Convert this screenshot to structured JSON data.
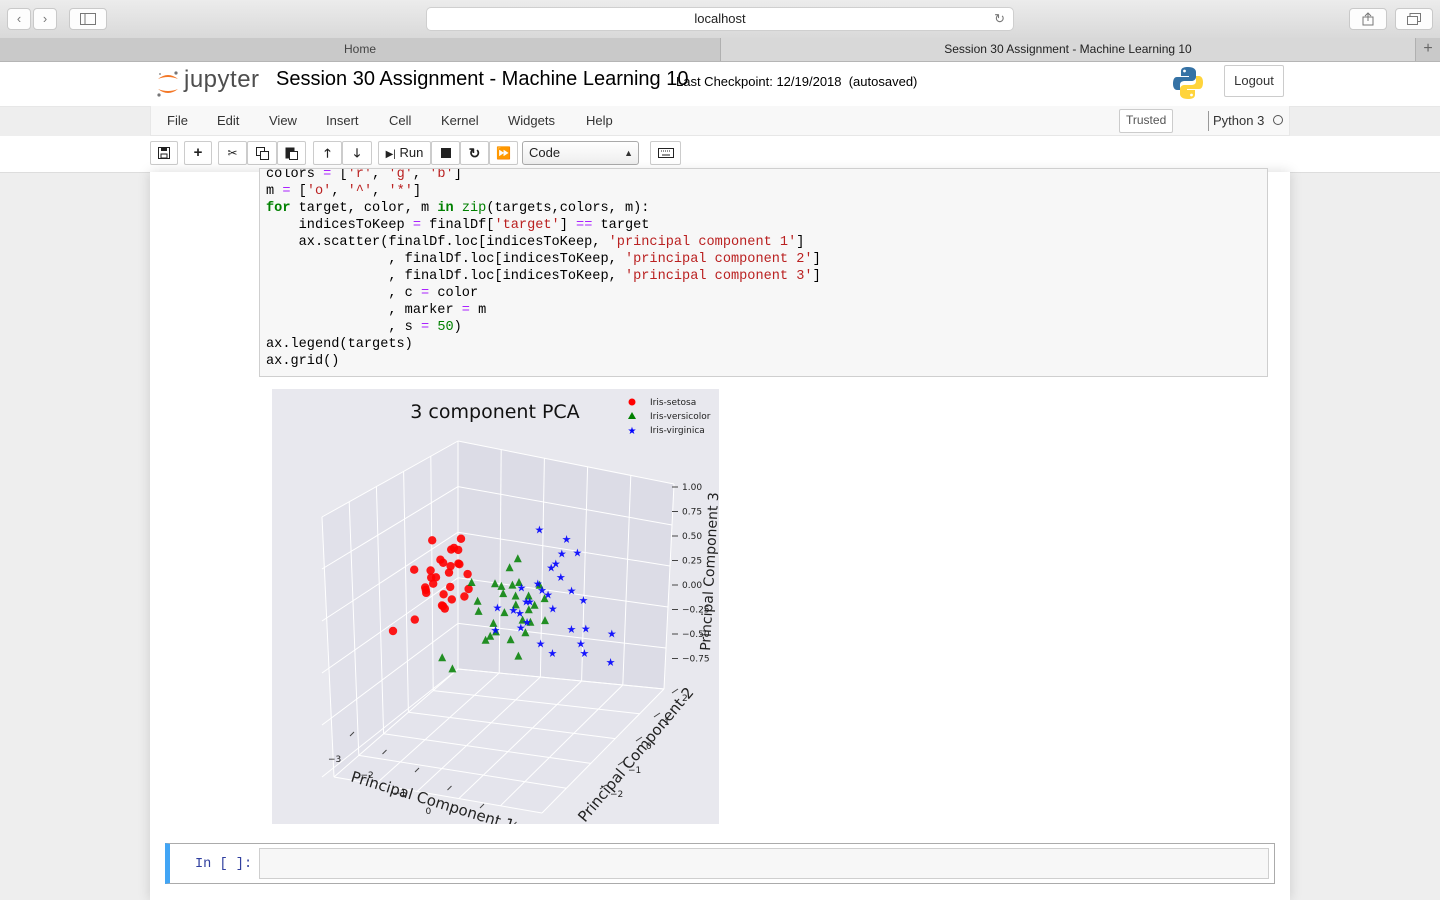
{
  "browser": {
    "url": "localhost",
    "tabs": [
      {
        "label": "Home"
      },
      {
        "label": "Session 30 Assignment - Machine Learning 10"
      }
    ]
  },
  "header": {
    "logo_text": "jupyter",
    "notebook_title": "Session 30 Assignment - Machine Learning 10",
    "checkpoint": "Last Checkpoint: 12/19/2018  (autosaved)",
    "logout_label": "Logout"
  },
  "menubar": {
    "items": [
      "File",
      "Edit",
      "View",
      "Insert",
      "Cell",
      "Kernel",
      "Widgets",
      "Help"
    ],
    "trusted": "Trusted",
    "kernel": "Python 3"
  },
  "toolbar": {
    "run_label": "Run",
    "cell_type": "Code"
  },
  "code_lines": [
    "colors = ['r', 'g', 'b']",
    "m = ['o', '^', '*']",
    "for target, color, m in zip(targets,colors, m):",
    "    indicesToKeep = finalDf['target'] == target",
    "    ax.scatter(finalDf.loc[indicesToKeep, 'principal component 1']",
    "              , finalDf.loc[indicesToKeep, 'principal component 2']",
    "              , finalDf.loc[indicesToKeep, 'principal component 3']",
    "              , c = color",
    "              , marker = m",
    "              , s = 50)",
    "ax.legend(targets)",
    "ax.grid()"
  ],
  "chart_data": {
    "type": "scatter",
    "title": "3 component PCA",
    "xlabel": "Principal Component 1",
    "ylabel": "Principal Component 2",
    "zlabel": "Principal Component 3",
    "x_ticks": [
      "−3",
      "−2",
      "−1",
      "0",
      "1",
      "2",
      "3"
    ],
    "y_ticks": [
      "−2",
      "−1",
      "0",
      "1",
      "2"
    ],
    "z_ticks": [
      "1.00",
      "0.75",
      "0.50",
      "0.25",
      "0.00",
      "−0.25",
      "−0.50",
      "−0.75"
    ],
    "xlim": [
      -3,
      3
    ],
    "ylim": [
      -2,
      2
    ],
    "zlim": [
      -0.75,
      1.0
    ],
    "legend_position": "top-right",
    "grid": true,
    "series": [
      {
        "name": "Iris-setosa",
        "color": "#ff0000",
        "marker": "circle",
        "points": [
          [
            -2.7,
            0.3,
            0.1
          ],
          [
            -2.5,
            -0.3,
            0.2
          ],
          [
            -2.6,
            0.1,
            -0.1
          ],
          [
            -2.4,
            -0.5,
            0.05
          ],
          [
            -2.8,
            0.6,
            0.3
          ],
          [
            -2.3,
            0.2,
            0.4
          ],
          [
            -2.2,
            -0.1,
            -0.2
          ],
          [
            -2.9,
            0.0,
            0.0
          ],
          [
            -2.6,
            -0.2,
            0.5
          ],
          [
            -2.4,
            0.4,
            0.2
          ],
          [
            -2.5,
            0.7,
            -0.1
          ],
          [
            -2.7,
            -0.6,
            -0.3
          ],
          [
            -2.3,
            -0.4,
            0.15
          ],
          [
            -2.2,
            0.5,
            0.1
          ],
          [
            -2.8,
            0.2,
            -0.25
          ],
          [
            -2.6,
            0.3,
            0.35
          ],
          [
            -2.4,
            -0.1,
            0.3
          ],
          [
            -2.5,
            0.0,
            -0.2
          ],
          [
            -2.3,
            0.1,
            0.0
          ],
          [
            -2.7,
            -0.3,
            -0.05
          ],
          [
            -2.1,
            0.2,
            0.25
          ],
          [
            -2.9,
            -0.5,
            0.2
          ],
          [
            -2.2,
            -0.6,
            0.05
          ],
          [
            -2.5,
            0.5,
            0.45
          ],
          [
            -3.0,
            -1.0,
            -0.4
          ],
          [
            -2.0,
            0.3,
            -0.1
          ],
          [
            -2.6,
            -0.1,
            0.1
          ],
          [
            -2.4,
            0.2,
            -0.15
          ],
          [
            -2.8,
            0.4,
            0.15
          ],
          [
            -2.1,
            -0.2,
            0.3
          ]
        ]
      },
      {
        "name": "Iris-versicolor",
        "color": "#008000",
        "marker": "triangle",
        "points": [
          [
            0.5,
            0.2,
            0.1
          ],
          [
            0.8,
            -0.3,
            0.2
          ],
          [
            0.3,
            0.5,
            -0.2
          ],
          [
            1.0,
            0.0,
            0.3
          ],
          [
            0.2,
            -0.6,
            0.0
          ],
          [
            0.6,
            0.4,
            -0.3
          ],
          [
            1.2,
            -0.2,
            0.1
          ],
          [
            0.4,
            0.1,
            0.4
          ],
          [
            0.7,
            -0.5,
            -0.1
          ],
          [
            0.9,
            0.6,
            0.2
          ],
          [
            0.1,
            0.3,
            -0.4
          ],
          [
            1.1,
            0.2,
            0.0
          ],
          [
            0.5,
            -0.8,
            0.15
          ],
          [
            0.3,
            -0.2,
            -0.25
          ],
          [
            0.8,
            0.1,
            -0.5
          ],
          [
            1.3,
            0.5,
            0.1
          ],
          [
            0.6,
            -0.4,
            0.3
          ],
          [
            0.2,
            0.0,
            0.2
          ],
          [
            0.9,
            -0.7,
            -0.2
          ],
          [
            0.4,
            0.6,
            0.05
          ],
          [
            0.0,
            -0.3,
            -0.35
          ],
          [
            1.0,
            0.3,
            -0.15
          ],
          [
            0.7,
            0.0,
            0.25
          ],
          [
            0.5,
            0.7,
            -0.05
          ],
          [
            -0.3,
            -1.0,
            -0.6
          ],
          [
            0.1,
            -1.5,
            -0.4
          ],
          [
            0.4,
            -0.9,
            0.35
          ],
          [
            0.8,
            0.8,
            -0.2
          ],
          [
            1.2,
            -0.5,
            0.05
          ],
          [
            0.6,
            0.2,
            0.5
          ]
        ]
      },
      {
        "name": "Iris-virginica",
        "color": "#0000ff",
        "marker": "star",
        "points": [
          [
            1.8,
            0.3,
            0.2
          ],
          [
            2.2,
            -0.2,
            0.4
          ],
          [
            1.5,
            0.6,
            0.0
          ],
          [
            2.5,
            0.1,
            0.6
          ],
          [
            1.9,
            -0.5,
            0.1
          ],
          [
            2.0,
            0.8,
            -0.2
          ],
          [
            2.7,
            0.4,
            0.3
          ],
          [
            1.6,
            -0.3,
            -0.1
          ],
          [
            2.3,
            0.5,
            0.8
          ],
          [
            2.1,
            -0.1,
            0.95
          ],
          [
            1.7,
            0.2,
            0.25
          ],
          [
            2.4,
            -0.6,
            0.05
          ],
          [
            2.6,
            0.7,
            -0.3
          ],
          [
            1.4,
            -0.8,
            0.15
          ],
          [
            2.9,
            0.0,
            0.5
          ],
          [
            2.0,
            0.3,
            -0.4
          ],
          [
            2.2,
            1.0,
            0.1
          ],
          [
            1.8,
            -0.4,
            0.35
          ],
          [
            2.5,
            -0.3,
            -0.2
          ],
          [
            1.6,
            0.5,
            0.45
          ],
          [
            3.0,
            0.6,
            -0.1
          ],
          [
            2.3,
            -0.9,
            0.2
          ],
          [
            1.9,
            1.2,
            -0.5
          ],
          [
            2.7,
            -0.7,
            0.3
          ],
          [
            2.1,
            0.9,
            0.6
          ],
          [
            1.5,
            -0.1,
            0.15
          ],
          [
            2.8,
            1.4,
            -0.25
          ],
          [
            2.4,
            1.6,
            -0.6
          ],
          [
            2.0,
            -1.2,
            0.0
          ],
          [
            2.6,
            0.2,
            0.7
          ]
        ]
      }
    ]
  },
  "empty_cell": {
    "prompt": "In [ ]:"
  }
}
